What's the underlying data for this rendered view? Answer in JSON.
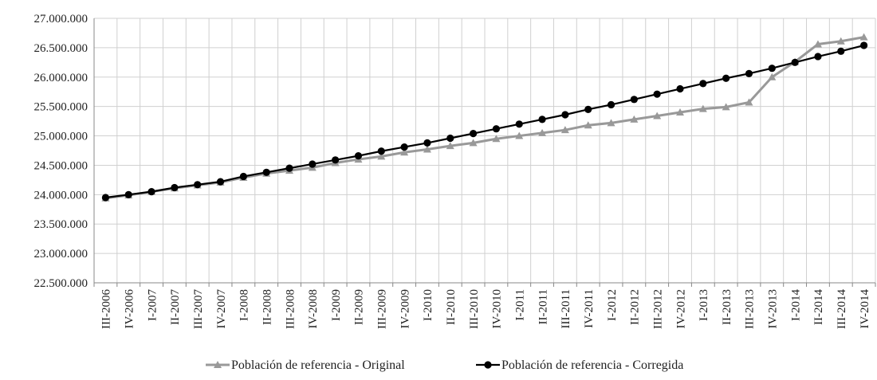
{
  "chart_data": {
    "type": "line",
    "categories": [
      "III-2006",
      "IV-2006",
      "I-2007",
      "II-2007",
      "III-2007",
      "IV-2007",
      "I-2008",
      "II-2008",
      "III-2008",
      "IV-2008",
      "I-2009",
      "II-2009",
      "III-2009",
      "IV-2009",
      "I-2010",
      "II-2010",
      "III-2010",
      "IV-2010",
      "I-2011",
      "II-2011",
      "III-2011",
      "IV-2011",
      "I-2012",
      "II-2012",
      "III-2012",
      "IV-2012",
      "I-2013",
      "II-2013",
      "III-2013",
      "IV-2013",
      "I-2014",
      "II-2014",
      "III-2014",
      "IV-2014"
    ],
    "ylim": [
      22500000,
      27000000
    ],
    "yticks": [
      22500000,
      23000000,
      23500000,
      24000000,
      24500000,
      25000000,
      25500000,
      26000000,
      26500000,
      27000000
    ],
    "ytick_labels": [
      "22.500.000",
      "23.000.000",
      "23.500.000",
      "24.000.000",
      "24.500.000",
      "25.000.000",
      "25.500.000",
      "26.000.000",
      "26.500.000",
      "27.000.000"
    ],
    "grid": true,
    "legend_position": "bottom",
    "series": [
      {
        "name": "Población de referencia - Original",
        "marker": "triangle",
        "color": "#999999",
        "values": [
          23940000,
          23990000,
          24050000,
          24110000,
          24160000,
          24210000,
          24290000,
          24360000,
          24410000,
          24460000,
          24540000,
          24600000,
          24650000,
          24720000,
          24770000,
          24830000,
          24880000,
          24950000,
          25000000,
          25050000,
          25100000,
          25180000,
          25220000,
          25280000,
          25340000,
          25400000,
          25460000,
          25490000,
          25570000,
          26000000,
          26260000,
          26560000,
          26610000,
          26680000
        ]
      },
      {
        "name": "Población de referencia - Corregida",
        "marker": "circle",
        "color": "#000000",
        "values": [
          23950000,
          24000000,
          24050000,
          24120000,
          24170000,
          24220000,
          24310000,
          24380000,
          24450000,
          24520000,
          24590000,
          24660000,
          24740000,
          24810000,
          24880000,
          24960000,
          25040000,
          25120000,
          25200000,
          25280000,
          25360000,
          25450000,
          25530000,
          25620000,
          25710000,
          25800000,
          25890000,
          25980000,
          26060000,
          26150000,
          26250000,
          26350000,
          26440000,
          26540000
        ]
      }
    ]
  }
}
